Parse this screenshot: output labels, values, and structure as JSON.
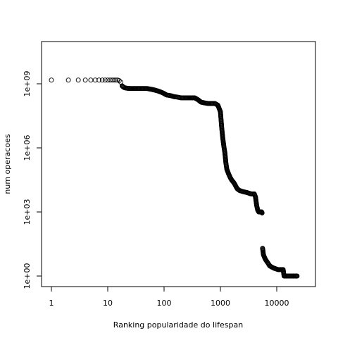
{
  "chart_data": {
    "type": "scatter",
    "xlabel": "Ranking popularidade do lifespan",
    "ylabel": "num operacoes",
    "x_scale": "log",
    "y_scale": "log",
    "xlim": [
      0.73,
      40000
    ],
    "ylim": [
      0.38,
      16000000000.0
    ],
    "x_ticks": [
      1,
      10,
      100,
      1000,
      10000
    ],
    "x_tick_labels": [
      "1",
      "10",
      "100",
      "1000",
      "10000"
    ],
    "y_ticks": [
      1,
      1000,
      1000000,
      1000000000
    ],
    "y_tick_labels": [
      "1e+00",
      "1e+03",
      "1e+06",
      "1e+09"
    ],
    "grid": false,
    "legend": "none",
    "marker": "open-circle",
    "color": "#000000",
    "series_points": [
      [
        1,
        1500000000.0
      ],
      [
        2,
        1500000000.0
      ],
      [
        3,
        1500000000.0
      ],
      [
        4,
        1500000000.0
      ],
      [
        5,
        1500000000.0
      ],
      [
        6,
        1500000000.0
      ],
      [
        7,
        1500000000.0
      ],
      [
        8,
        1500000000.0
      ],
      [
        9,
        1500000000.0
      ],
      [
        10,
        1500000000.0
      ],
      [
        11,
        1500000000.0
      ],
      [
        12,
        1500000000.0
      ],
      [
        13,
        1500000000.0
      ],
      [
        14,
        1500000000.0
      ],
      [
        15,
        1500000000.0
      ],
      [
        16,
        1400000000.0
      ],
      [
        17,
        1200000000.0
      ],
      [
        18,
        800000000.0
      ],
      [
        19,
        700000000.0
      ],
      [
        20,
        650000000.0
      ],
      [
        22,
        620000000.0
      ],
      [
        25,
        600000000.0
      ],
      [
        30,
        600000000.0
      ],
      [
        40,
        600000000.0
      ],
      [
        50,
        600000000.0
      ],
      [
        60,
        550000000.0
      ],
      [
        70,
        500000000.0
      ],
      [
        80,
        450000000.0
      ],
      [
        90,
        400000000.0
      ],
      [
        100,
        350000000.0
      ],
      [
        110,
        300000000.0
      ],
      [
        130,
        280000000.0
      ],
      [
        150,
        250000000.0
      ],
      [
        170,
        240000000.0
      ],
      [
        200,
        220000000.0
      ],
      [
        250,
        220000000.0
      ],
      [
        300,
        220000000.0
      ],
      [
        350,
        220000000.0
      ],
      [
        400,
        180000000.0
      ],
      [
        450,
        140000000.0
      ],
      [
        500,
        130000000.0
      ],
      [
        600,
        120000000.0
      ],
      [
        700,
        120000000.0
      ],
      [
        800,
        120000000.0
      ],
      [
        900,
        100000000.0
      ],
      [
        1000,
        50000000.0
      ],
      [
        1050,
        10000000.0
      ],
      [
        1100,
        3000000.0
      ],
      [
        1150,
        1200000.0
      ],
      [
        1200,
        600000.0
      ],
      [
        1250,
        200000.0
      ],
      [
        1300,
        100000.0
      ],
      [
        1400,
        60000.0
      ],
      [
        1500,
        40000.0
      ],
      [
        1600,
        30000.0
      ],
      [
        1700,
        25000.0
      ],
      [
        1800,
        20000.0
      ],
      [
        1900,
        15000.0
      ],
      [
        2000,
        12000.0
      ],
      [
        2200,
        10000.0
      ],
      [
        2500,
        9000.0
      ],
      [
        3000,
        8000.0
      ],
      [
        3500,
        7000.0
      ],
      [
        4000,
        7000.0
      ],
      [
        4200,
        5000.0
      ],
      [
        4400,
        2000.0
      ],
      [
        4600,
        1200.0
      ],
      [
        4800,
        1000.0
      ],
      [
        5000,
        1000.0
      ],
      [
        5200,
        1000.0
      ],
      [
        5400,
        1000.0
      ],
      [
        5500,
        900
      ],
      [
        5600,
        20
      ],
      [
        5700,
        15
      ],
      [
        5800,
        10
      ],
      [
        6000,
        8
      ],
      [
        6300,
        6
      ],
      [
        6600,
        5
      ],
      [
        7000,
        4
      ],
      [
        7500,
        3
      ],
      [
        8000,
        2.7
      ],
      [
        8500,
        2.5
      ],
      [
        9000,
        2.3
      ],
      [
        9500,
        2.2
      ],
      [
        10000,
        2.1
      ],
      [
        10500,
        2
      ],
      [
        11000,
        2
      ],
      [
        12000,
        2
      ],
      [
        13000,
        2
      ],
      [
        13500,
        1
      ],
      [
        14000,
        1
      ],
      [
        15000,
        1
      ],
      [
        16000,
        1
      ],
      [
        17000,
        1
      ],
      [
        18000,
        1
      ],
      [
        19000,
        1
      ],
      [
        20000,
        1
      ],
      [
        21000,
        1
      ],
      [
        22000,
        1
      ],
      [
        23000,
        1
      ]
    ]
  }
}
